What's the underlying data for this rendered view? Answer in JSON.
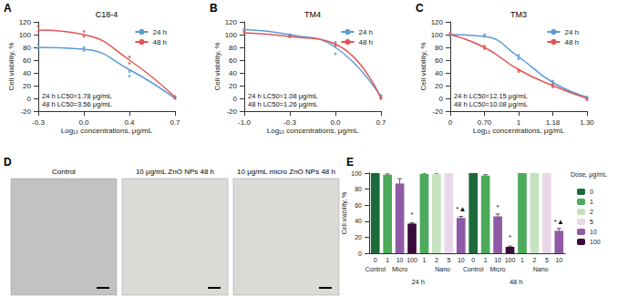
{
  "chart_data": [
    {
      "panel_label": "A",
      "type": "line",
      "title": "C18-4",
      "categories": [
        "-0.3",
        "0.0",
        "0.4",
        "0.7"
      ],
      "x_label": "Log₁₀ concentrations, μg/mL",
      "y_label": "Cell viability, %",
      "ylim": [
        -20,
        120
      ],
      "yticks": [
        -20,
        0,
        20,
        40,
        60,
        80,
        100,
        120
      ],
      "grid": false,
      "legend": "upper right",
      "series": [
        {
          "name": "24 h",
          "color": "#5b9bd5",
          "marker": "circle",
          "values": [
            80,
            77,
            45,
            0
          ],
          "replicates": [
            [
              78,
              85
            ],
            [
              75,
              80
            ],
            [
              42,
              35
            ],
            [
              2,
              0
            ]
          ]
        },
        {
          "name": "48 h",
          "color": "#e05555",
          "marker": "circle",
          "values": [
            107,
            100,
            60,
            2
          ],
          "replicates": [
            [
              105,
              113
            ],
            [
              97,
              105
            ],
            [
              65,
              55
            ],
            [
              3,
              0
            ]
          ]
        }
      ],
      "annotations": [
        "24 h LC50=1.78 μg/mL",
        "48 h LC50=3.56 μg/mL"
      ]
    },
    {
      "panel_label": "B",
      "type": "line",
      "title": "TM4",
      "categories": [
        "-1.0",
        "-0.3",
        "0.0",
        "0.7"
      ],
      "x_label": "Log₁₀ concentrations, μg/mL",
      "y_label": "Cell viability, %",
      "ylim": [
        -20,
        120
      ],
      "yticks": [
        -20,
        0,
        20,
        40,
        60,
        80,
        100,
        120
      ],
      "grid": false,
      "legend": "upper right",
      "series": [
        {
          "name": "24 h",
          "color": "#5b9bd5",
          "marker": "circle",
          "values": [
            108,
            100,
            80,
            2
          ],
          "replicates": [
            [
              108,
              107
            ],
            [
              98,
              100
            ],
            [
              70,
              88
            ],
            [
              5,
              0
            ]
          ]
        },
        {
          "name": "48 h",
          "color": "#e05555",
          "marker": "circle",
          "values": [
            103,
            97,
            85,
            0
          ],
          "replicates": [
            [
              103,
              105
            ],
            [
              96,
              99
            ],
            [
              85,
              82
            ],
            [
              0,
              3
            ]
          ]
        }
      ],
      "annotations": [
        "24 h LC50=1.08 μg/mL",
        "48 h LC50=1.26 μg/mL"
      ]
    },
    {
      "panel_label": "C",
      "type": "line",
      "title": "TM3",
      "categories": [
        "0",
        "0.70",
        "1",
        "1.18",
        "1.30"
      ],
      "x_label": "Log₁₀ concentrations, μg/mL",
      "y_label": "Cell viability, %",
      "ylim": [
        -20,
        120
      ],
      "yticks": [
        -20,
        0,
        20,
        40,
        60,
        80,
        100,
        120
      ],
      "grid": false,
      "legend": "upper right",
      "series": [
        {
          "name": "24 h",
          "color": "#5b9bd5",
          "marker": "circle",
          "values": [
            100,
            97,
            65,
            25,
            2
          ],
          "replicates": [
            [
              100,
              98
            ],
            [
              97,
              100
            ],
            [
              68,
              62
            ],
            [
              22,
              27
            ],
            [
              2,
              0
            ]
          ]
        },
        {
          "name": "48 h",
          "color": "#e05555",
          "marker": "circle",
          "values": [
            100,
            80,
            45,
            20,
            0
          ],
          "replicates": [
            [
              100,
              102
            ],
            [
              78,
              82
            ],
            [
              45,
              42
            ],
            [
              18,
              22
            ],
            [
              0,
              -2
            ]
          ]
        }
      ],
      "annotations": [
        "24 h LC50=12.15 μg/mL",
        "48 h LC50=10.08 μg/mL"
      ]
    },
    {
      "panel_label": "E",
      "type": "bar",
      "categories": [
        "0",
        "1",
        "10",
        "100",
        "1",
        "2",
        "5",
        "10",
        "0",
        "1",
        "10",
        "100",
        "1",
        "2",
        "5",
        "10"
      ],
      "groups": [
        "Control",
        "Micro",
        "Micro",
        "Micro",
        "Nano",
        "Nano",
        "Nano",
        "Nano",
        "Control",
        "Micro",
        "Micro",
        "Micro",
        "Nano",
        "Nano",
        "Nano",
        "Nano"
      ],
      "times": [
        "24 h",
        "24 h",
        "24 h",
        "24 h",
        "24 h",
        "24 h",
        "24 h",
        "24 h",
        "48 h",
        "48 h",
        "48 h",
        "48 h",
        "48 h",
        "48 h",
        "48 h",
        "48 h"
      ],
      "values": [
        100,
        98,
        87,
        37,
        99,
        99,
        100,
        44,
        100,
        97,
        46,
        8,
        100,
        100,
        100,
        28
      ],
      "errors": [
        1,
        1,
        6,
        1,
        1,
        1,
        1,
        2,
        1,
        1,
        3,
        1,
        1,
        1,
        1,
        3
      ],
      "annotations": [
        null,
        null,
        null,
        "*",
        null,
        null,
        null,
        "*▲",
        null,
        null,
        "*",
        "*",
        null,
        null,
        null,
        "*▲"
      ],
      "y_label": "Cell viability, %",
      "ylim": [
        0,
        100
      ],
      "yticks": [
        0,
        20,
        40,
        60,
        80,
        100
      ],
      "grid": false,
      "legend": "right",
      "legend_title": "Dose, μg/mL",
      "series": [
        {
          "name": "0",
          "color": "#1b6b3a"
        },
        {
          "name": "1",
          "color": "#4caa5a"
        },
        {
          "name": "2",
          "color": "#c5e3c0"
        },
        {
          "name": "5",
          "color": "#ead7ea"
        },
        {
          "name": "10",
          "color": "#8f5aa5"
        },
        {
          "name": "100",
          "color": "#3a0b3a"
        }
      ]
    }
  ],
  "image_panel": {
    "panel_label": "D",
    "images": [
      {
        "caption": "Control"
      },
      {
        "caption": "10 μg/mL ZnO NPs 48 h"
      },
      {
        "caption": "10 μg/mL micro ZnO NPs 48 h"
      }
    ]
  }
}
